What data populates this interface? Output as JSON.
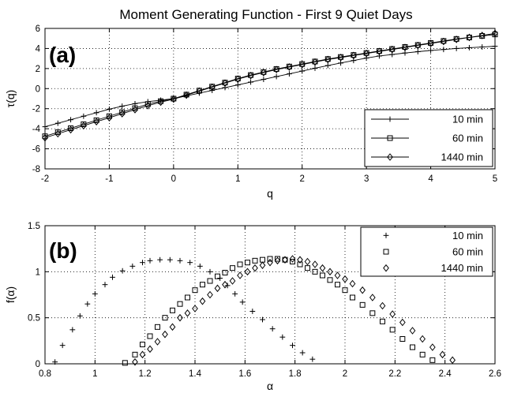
{
  "figure_title": "Moment Generating Function - First 9 Quiet Days",
  "chart_data": [
    {
      "type": "line",
      "panel_label": "(a)",
      "xlabel": "q",
      "ylabel": "τ(q)",
      "xlim": [
        -2,
        5
      ],
      "ylim": [
        -8,
        6
      ],
      "xticks": [
        "-2",
        "-1",
        "0",
        "1",
        "2",
        "3",
        "4",
        "5"
      ],
      "yticks": [
        "-8",
        "-6",
        "-4",
        "-2",
        "0",
        "2",
        "4",
        "6"
      ],
      "grid": true,
      "legend_position": "bottom-right",
      "x": [
        -2.0,
        -1.8,
        -1.6,
        -1.4,
        -1.2,
        -1.0,
        -0.8,
        -0.6,
        -0.4,
        -0.2,
        0.0,
        0.2,
        0.4,
        0.6,
        0.8,
        1.0,
        1.2,
        1.4,
        1.6,
        1.8,
        2.0,
        2.2,
        2.4,
        2.6,
        2.8,
        3.0,
        3.2,
        3.4,
        3.6,
        3.8,
        4.0,
        4.2,
        4.4,
        4.6,
        4.8,
        5.0
      ],
      "series": [
        {
          "name": "10 min",
          "marker": "plus",
          "values": [
            -3.8,
            -3.45,
            -3.1,
            -2.75,
            -2.4,
            -2.05,
            -1.75,
            -1.5,
            -1.3,
            -1.15,
            -1.0,
            -0.72,
            -0.45,
            -0.18,
            0.1,
            0.37,
            0.65,
            0.92,
            1.2,
            1.47,
            1.75,
            2.03,
            2.3,
            2.55,
            2.8,
            3.05,
            3.25,
            3.4,
            3.55,
            3.68,
            3.8,
            3.9,
            4.0,
            4.08,
            4.15,
            4.22
          ]
        },
        {
          "name": "60 min",
          "marker": "square",
          "values": [
            -4.75,
            -4.35,
            -3.95,
            -3.55,
            -3.15,
            -2.75,
            -2.35,
            -1.95,
            -1.55,
            -1.25,
            -1.0,
            -0.6,
            -0.2,
            0.2,
            0.6,
            1.0,
            1.35,
            1.65,
            1.95,
            2.2,
            2.45,
            2.7,
            2.95,
            3.15,
            3.35,
            3.55,
            3.75,
            3.95,
            4.15,
            4.35,
            4.55,
            4.75,
            4.95,
            5.1,
            5.25,
            5.4
          ]
        },
        {
          "name": "1440 min",
          "marker": "diamond",
          "values": [
            -4.9,
            -4.5,
            -4.1,
            -3.7,
            -3.3,
            -2.9,
            -2.5,
            -2.1,
            -1.7,
            -1.35,
            -1.05,
            -0.65,
            -0.25,
            0.15,
            0.55,
            0.95,
            1.3,
            1.6,
            1.9,
            2.15,
            2.4,
            2.65,
            2.9,
            3.1,
            3.3,
            3.5,
            3.7,
            3.9,
            4.1,
            4.3,
            4.5,
            4.7,
            4.9,
            5.1,
            5.3,
            5.5
          ]
        }
      ]
    },
    {
      "type": "scatter",
      "panel_label": "(b)",
      "xlabel": "α",
      "ylabel": "f(α)",
      "xlim": [
        0.8,
        2.6
      ],
      "ylim": [
        0,
        1.5
      ],
      "xticks": [
        "0.8",
        "1",
        "1.2",
        "1.4",
        "1.6",
        "1.8",
        "2",
        "2.2",
        "2.4",
        "2.6"
      ],
      "yticks": [
        "0",
        "0.5",
        "1",
        "1.5"
      ],
      "grid": true,
      "legend_position": "top-right",
      "series": [
        {
          "name": "10 min",
          "marker": "plus",
          "x": [
            0.84,
            0.87,
            0.91,
            0.94,
            0.97,
            1.0,
            1.04,
            1.07,
            1.11,
            1.15,
            1.19,
            1.22,
            1.26,
            1.3,
            1.34,
            1.38,
            1.42,
            1.46,
            1.5,
            1.53,
            1.56,
            1.59,
            1.63,
            1.67,
            1.71,
            1.75,
            1.79,
            1.83,
            1.87
          ],
          "y": [
            0.02,
            0.2,
            0.37,
            0.52,
            0.65,
            0.76,
            0.86,
            0.94,
            1.01,
            1.06,
            1.1,
            1.12,
            1.13,
            1.13,
            1.12,
            1.1,
            1.06,
            1.0,
            0.93,
            0.85,
            0.76,
            0.67,
            0.57,
            0.48,
            0.38,
            0.29,
            0.2,
            0.12,
            0.05
          ]
        },
        {
          "name": "60 min",
          "marker": "square",
          "x": [
            1.12,
            1.16,
            1.19,
            1.22,
            1.25,
            1.28,
            1.31,
            1.34,
            1.37,
            1.4,
            1.43,
            1.46,
            1.49,
            1.52,
            1.55,
            1.58,
            1.61,
            1.64,
            1.67,
            1.7,
            1.73,
            1.76,
            1.79,
            1.82,
            1.85,
            1.88,
            1.91,
            1.94,
            1.97,
            2.0,
            2.03,
            2.07,
            2.11,
            2.15,
            2.19,
            2.23,
            2.27,
            2.31,
            2.35
          ],
          "y": [
            0.01,
            0.1,
            0.21,
            0.3,
            0.4,
            0.5,
            0.58,
            0.65,
            0.72,
            0.8,
            0.86,
            0.9,
            0.95,
            0.99,
            1.04,
            1.08,
            1.1,
            1.12,
            1.13,
            1.14,
            1.14,
            1.13,
            1.11,
            1.08,
            1.04,
            1.0,
            0.96,
            0.91,
            0.86,
            0.8,
            0.72,
            0.64,
            0.55,
            0.46,
            0.37,
            0.27,
            0.18,
            0.1,
            0.04
          ]
        },
        {
          "name": "1440 min",
          "marker": "diamond",
          "x": [
            1.16,
            1.19,
            1.22,
            1.25,
            1.28,
            1.31,
            1.34,
            1.37,
            1.4,
            1.43,
            1.46,
            1.49,
            1.52,
            1.55,
            1.58,
            1.61,
            1.64,
            1.67,
            1.7,
            1.73,
            1.76,
            1.79,
            1.82,
            1.85,
            1.88,
            1.91,
            1.94,
            1.97,
            2.0,
            2.03,
            2.07,
            2.11,
            2.15,
            2.19,
            2.23,
            2.27,
            2.31,
            2.35,
            2.39,
            2.43
          ],
          "y": [
            0.02,
            0.1,
            0.16,
            0.24,
            0.32,
            0.4,
            0.5,
            0.55,
            0.6,
            0.68,
            0.75,
            0.82,
            0.86,
            0.9,
            0.96,
            1.0,
            1.04,
            1.07,
            1.1,
            1.12,
            1.13,
            1.14,
            1.13,
            1.11,
            1.08,
            1.04,
            1.0,
            0.96,
            0.92,
            0.87,
            0.8,
            0.72,
            0.63,
            0.54,
            0.45,
            0.36,
            0.27,
            0.18,
            0.1,
            0.04
          ]
        }
      ]
    }
  ]
}
